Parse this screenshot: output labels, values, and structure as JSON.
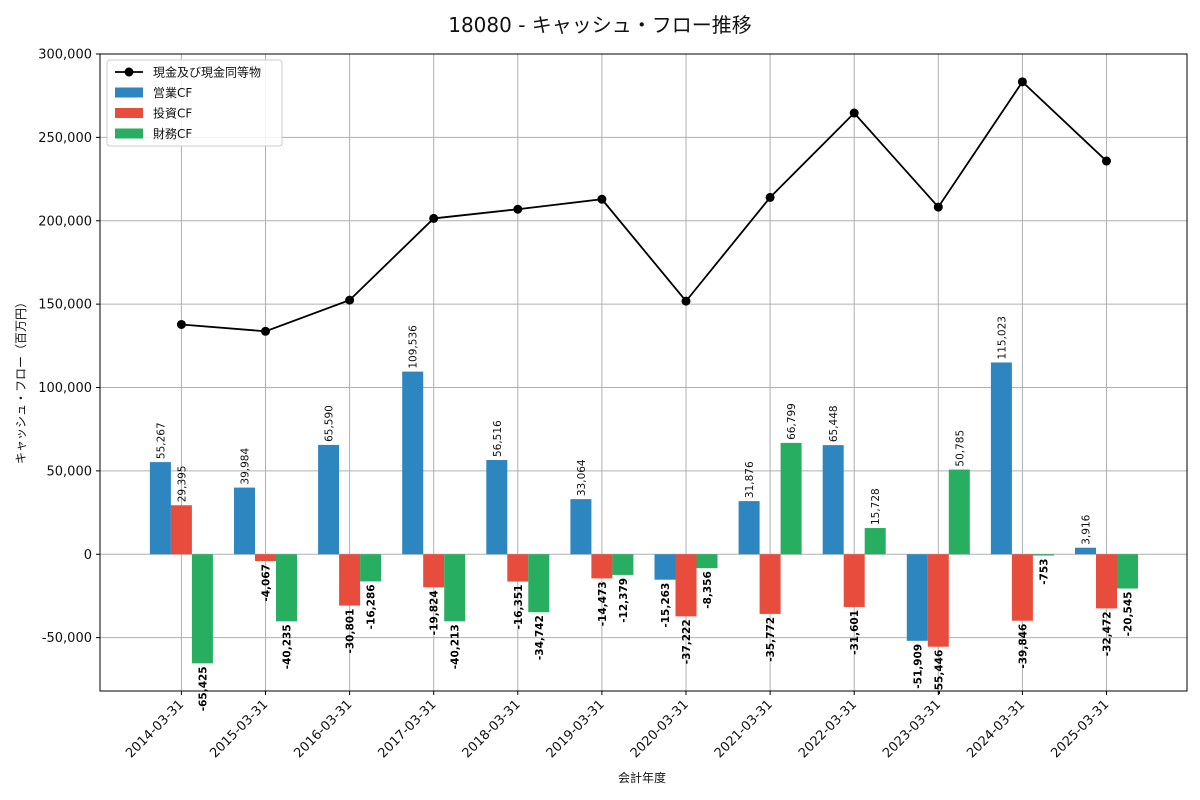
{
  "chart_data": {
    "type": "bar",
    "title": "18080 - キャッシュ・フロー推移",
    "xlabel": "会計年度",
    "ylabel": "キャッシュ・フロー（百万円）",
    "ylim": [
      -82000,
      300000
    ],
    "yticks": [
      -50000,
      0,
      50000,
      100000,
      150000,
      200000,
      250000,
      300000
    ],
    "ytick_labels": [
      "-50,000",
      "0",
      "50,000",
      "100,000",
      "150,000",
      "200,000",
      "250,000",
      "300,000"
    ],
    "grid": true,
    "legend_position": "top-left",
    "categories": [
      "2014-03-31",
      "2015-03-31",
      "2016-03-31",
      "2017-03-31",
      "2018-03-31",
      "2019-03-31",
      "2020-03-31",
      "2021-03-31",
      "2022-03-31",
      "2023-03-31",
      "2024-03-31",
      "2025-03-31"
    ],
    "series": [
      {
        "name": "営業CF",
        "kind": "bar",
        "color": "#2e86c1",
        "values": [
          55267,
          39984,
          65590,
          109536,
          56516,
          33064,
          -15263,
          31876,
          65448,
          -51909,
          115023,
          3916
        ],
        "labels": [
          "55,267",
          "39,984",
          "65,590",
          "109,536",
          "56,516",
          "33,064",
          "-15,263",
          "31,876",
          "65,448",
          "-51,909",
          "115,023",
          "3,916"
        ]
      },
      {
        "name": "投資CF",
        "kind": "bar",
        "color": "#e74c3c",
        "values": [
          29395,
          -4067,
          -30801,
          -19824,
          -16351,
          -14473,
          -37222,
          -35772,
          -31601,
          -55446,
          -39846,
          -32472
        ],
        "labels": [
          "29,395",
          "-4,067",
          "-30,801",
          "-19,824",
          "-16,351",
          "-14,473",
          "-37,222",
          "-35,772",
          "-31,601",
          "-55,446",
          "-39,846",
          "-32,472"
        ]
      },
      {
        "name": "財務CF",
        "kind": "bar",
        "color": "#27ae60",
        "values": [
          -65425,
          -40235,
          -16286,
          -40213,
          -34742,
          -12379,
          -8356,
          66799,
          15728,
          50785,
          -753,
          -20545
        ],
        "labels": [
          "-65,425",
          "-40,235",
          "-16,286",
          "-40,213",
          "-34,742",
          "-12,379",
          "-8,356",
          "66,799",
          "15,728",
          "50,785",
          "-753",
          "-20,545"
        ]
      },
      {
        "name": "現金及び現金同等物",
        "kind": "line",
        "color": "#000000",
        "values": [
          137800,
          133700,
          152400,
          201400,
          206900,
          212900,
          151800,
          214000,
          264600,
          208200,
          283300,
          235800
        ]
      }
    ]
  }
}
